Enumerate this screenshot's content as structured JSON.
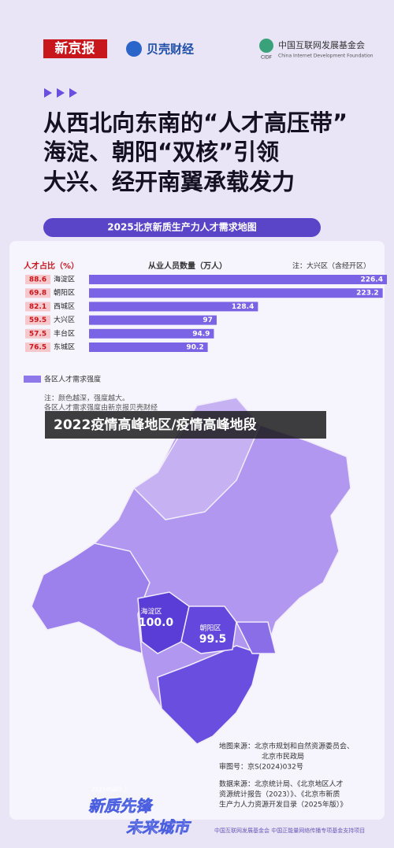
{
  "header": {
    "logo_left": "新京报",
    "logo_mid": "贝壳财经",
    "logo_right": "中国互联网发展基金会",
    "logo_right_en": "China Internet Development Foundation",
    "logo_right_abbr": "CIDF"
  },
  "title_lines": [
    "从西北向东南的“人才高压带”",
    "海淀、朝阳“双核”引领",
    "大兴、经开南翼承载发力"
  ],
  "banner": "2025北京新质生产力人才需求地图",
  "chart_data": {
    "type": "bar",
    "share_label": "人才占比（%）",
    "value_label": "从业人员数量（万人）",
    "note": "注：大兴区（含经开区）",
    "categories": [
      "海淀区",
      "朝阳区",
      "西城区",
      "大兴区",
      "丰台区",
      "东城区"
    ],
    "shares": [
      "88.6",
      "69.8",
      "82.1",
      "59.5",
      "57.5",
      "76.5"
    ],
    "values": [
      226.4,
      223.2,
      128.4,
      97,
      94.9,
      90.2
    ],
    "value_labels": [
      "226.4",
      "223.2",
      "128.4",
      "97",
      "94.9",
      "90.2"
    ],
    "xlim": [
      0,
      230
    ],
    "color": "#7b63e6"
  },
  "legend": "各区人才需求强度",
  "notes": [
    "注：颜色越深，强度越大。",
    "各区人才需求强度由新京报贝壳财经"
  ],
  "caption": "2022疫情高峰地区/疫情高峰地段",
  "map": {
    "districts": [
      {
        "name": "海淀区",
        "value": "100.0"
      },
      {
        "name": "朝阳区",
        "value": "99.5"
      }
    ]
  },
  "sources": {
    "map_source_1": "地图来源：北京市规划和自然资源委员会、",
    "map_source_2": "北京市民政局",
    "review_no": "审图号：京S(2024)032号",
    "data_source_1": "数据来源：北京统计局、《北京地区人才",
    "data_source_2": "资源统计报告（2023）》、《北京市新质",
    "data_source_3": "生产力人力资源开发目录（2025年版）》"
  },
  "campaign": {
    "small": "2025中国向上",
    "line1": "新质先锋",
    "line2": "未来城市"
  },
  "footer": "中国互联网发展基金会 中国正能量网络传播专项基金支持项目"
}
